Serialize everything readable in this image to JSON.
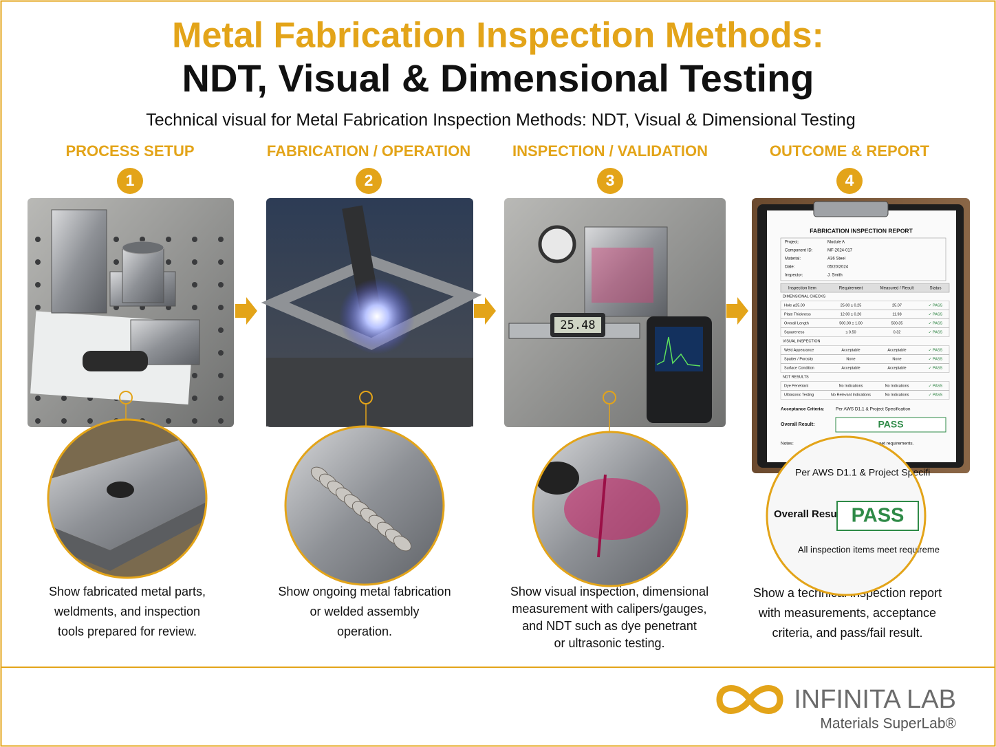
{
  "title": {
    "line1": "Metal Fabrication Inspection Methods:",
    "line2": "NDT, Visual & Dimensional Testing"
  },
  "subtitle": "Technical visual for Metal Fabrication Inspection Methods: NDT, Visual & Dimensional Testing",
  "steps": [
    {
      "heading": "PROCESS SETUP",
      "number": 1,
      "caption": [
        "Show fabricated metal parts,",
        "weldments, and inspection",
        "tools prepared for review."
      ]
    },
    {
      "heading": "FABRICATION / OPERATION",
      "number": 2,
      "caption": [
        "Show ongoing metal fabrication",
        "or welded assembly",
        "operation."
      ]
    },
    {
      "heading": "INSPECTION / VALIDATION",
      "number": 3,
      "caption": [
        "Show visual inspection, dimensional",
        "measurement with calipers/gauges,",
        "and NDT such as dye penetrant",
        "or ultrasonic testing."
      ],
      "instrument_reading": "25.48"
    },
    {
      "heading": "OUTCOME & REPORT",
      "number": 4,
      "caption": [
        "Show a technical inspection report",
        "with measurements, acceptance",
        "criteria, and pass/fail result."
      ]
    }
  ],
  "report": {
    "title": "FABRICATION INSPECTION REPORT",
    "fields": [
      [
        "Project:",
        "Module A"
      ],
      [
        "Component ID:",
        "MF-2024-017"
      ],
      [
        "Material:",
        "A36 Steel"
      ],
      [
        "Date:",
        "05/20/2024"
      ],
      [
        "Inspector:",
        "J. Smith"
      ]
    ],
    "columns": [
      "Inspection Item",
      "Requirement",
      "Measured / Result",
      "Status"
    ],
    "sections": [
      {
        "name": "DIMENSIONAL CHECKS",
        "rows": [
          [
            "Hole ⌀25.00",
            "25.00 ± 0.25",
            "25.07",
            "✓ PASS"
          ],
          [
            "Plate Thickness",
            "12.00 ± 0.20",
            "11.98",
            "✓ PASS"
          ],
          [
            "Overall Length",
            "500.00 ± 1.00",
            "500.35",
            "✓ PASS"
          ],
          [
            "Squareness",
            "≤ 0.50",
            "0.32",
            "✓ PASS"
          ]
        ]
      },
      {
        "name": "VISUAL INSPECTION",
        "rows": [
          [
            "Weld Appearance",
            "Acceptable",
            "Acceptable",
            "✓ PASS"
          ],
          [
            "Spatter / Porosity",
            "None",
            "None",
            "✓ PASS"
          ],
          [
            "Surface Condition",
            "Acceptable",
            "Acceptable",
            "✓ PASS"
          ]
        ]
      },
      {
        "name": "NDT RESULTS",
        "rows": [
          [
            "Dye Penetrant",
            "No Indications",
            "No Indications",
            "✓ PASS"
          ],
          [
            "Ultrasonic Testing",
            "No Relevant Indications",
            "No Indications",
            "✓ PASS"
          ]
        ]
      }
    ],
    "acceptance_label": "Acceptance Criteria:",
    "acceptance": "Per AWS D1.1 & Project Specification",
    "result_label": "Overall Result:",
    "result": "PASS",
    "notes_label": "Notes:",
    "notes": "All inspection items meet requirements."
  },
  "zoom": {
    "criteria": "Per AWS D1.1 & Project Specifi",
    "result_label": "Overall Result:",
    "result": "PASS",
    "notes": "All inspection items meet requireme"
  },
  "logo": {
    "name": "INFINITA LAB",
    "tagline": "Materials SuperLab®"
  }
}
